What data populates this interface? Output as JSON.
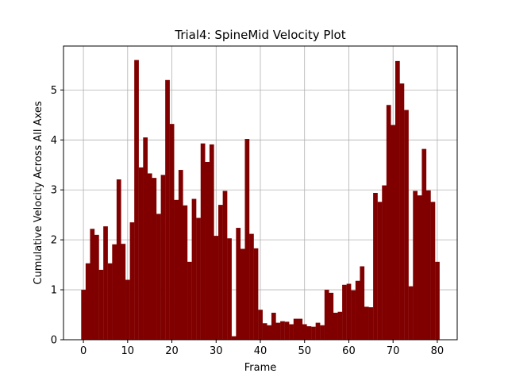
{
  "chart_data": {
    "type": "bar",
    "title": "Trial4: SpineMid Velocity Plot",
    "xlabel": "Frame",
    "ylabel": "Cumulative Velocity Across All Axes",
    "xlim": [
      -4.5,
      84.5
    ],
    "ylim": [
      0,
      5.88
    ],
    "xticks": [
      0,
      10,
      20,
      30,
      40,
      50,
      60,
      70,
      80
    ],
    "yticks": [
      0,
      1,
      2,
      3,
      4,
      5
    ],
    "grid": true,
    "bar_color": "#800000",
    "x": [
      0,
      1,
      2,
      3,
      4,
      5,
      6,
      7,
      8,
      9,
      10,
      11,
      12,
      13,
      14,
      15,
      16,
      17,
      18,
      19,
      20,
      21,
      22,
      23,
      24,
      25,
      26,
      27,
      28,
      29,
      30,
      31,
      32,
      33,
      34,
      35,
      36,
      37,
      38,
      39,
      40,
      41,
      42,
      43,
      44,
      45,
      46,
      47,
      48,
      49,
      50,
      51,
      52,
      53,
      54,
      55,
      56,
      57,
      58,
      59,
      60,
      61,
      62,
      63,
      64,
      65,
      66,
      67,
      68,
      69,
      70,
      71,
      72,
      73,
      74,
      75,
      76,
      77,
      78,
      79,
      80
    ],
    "values": [
      1.0,
      1.53,
      2.22,
      2.1,
      1.4,
      2.27,
      1.53,
      1.91,
      3.21,
      1.92,
      1.2,
      2.35,
      5.6,
      3.45,
      4.05,
      3.33,
      3.24,
      2.52,
      3.3,
      5.2,
      4.32,
      2.8,
      3.4,
      2.69,
      1.56,
      2.82,
      2.44,
      3.93,
      3.56,
      3.91,
      2.08,
      2.7,
      2.98,
      2.03,
      0.07,
      2.24,
      1.82,
      4.02,
      2.12,
      1.83,
      0.6,
      0.33,
      0.29,
      0.54,
      0.34,
      0.37,
      0.36,
      0.31,
      0.42,
      0.42,
      0.31,
      0.27,
      0.26,
      0.34,
      0.29,
      1.0,
      0.94,
      0.54,
      0.56,
      1.1,
      1.12,
      0.99,
      1.18,
      1.47,
      0.66,
      0.65,
      2.94,
      2.76,
      3.09,
      4.7,
      4.3,
      5.58,
      5.13,
      4.6,
      1.07,
      2.98,
      2.89,
      3.82,
      2.99,
      2.76,
      1.56
    ]
  }
}
